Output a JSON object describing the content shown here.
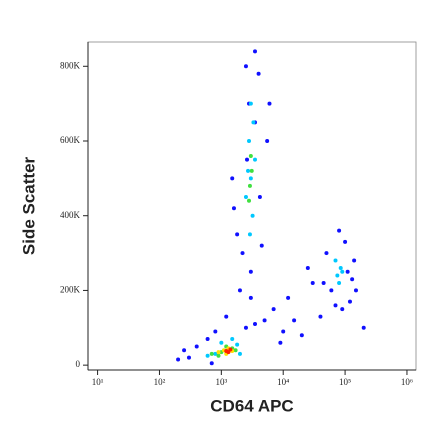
{
  "chart_data": {
    "type": "scatter",
    "x_label": "CD64 APC",
    "y_label": "Side Scatter",
    "xscale": "log",
    "xlim": [
      7,
      1400000
    ],
    "ylim": [
      -13000,
      865000
    ],
    "xticks": [
      {
        "value": 10,
        "label": "10¹"
      },
      {
        "value": 100,
        "label": "10²"
      },
      {
        "value": 1000,
        "label": "10³"
      },
      {
        "value": 10000,
        "label": "10⁴"
      },
      {
        "value": 100000,
        "label": "10⁵"
      },
      {
        "value": 1000000,
        "label": "10⁶"
      }
    ],
    "yticks": [
      0,
      {
        "value": 200000,
        "label": "200K"
      },
      {
        "value": 400000,
        "label": "400K"
      },
      {
        "value": 600000,
        "label": "600K"
      },
      {
        "value": 800000,
        "label": "800K"
      }
    ],
    "series": [
      {
        "color": "#1010ff",
        "x": [
          300,
          400,
          600,
          800,
          2500,
          3500,
          1200,
          2000,
          5000,
          7000,
          10000,
          15000,
          20000,
          40000,
          150000,
          200000,
          1800,
          2200,
          3000,
          4500,
          5500,
          6000,
          2500,
          3500,
          4000,
          1500,
          1600,
          2800,
          4200,
          50000,
          60000,
          70000,
          90000,
          120000,
          140000,
          45000,
          100000,
          80000,
          110000,
          130000,
          3000,
          3500,
          2600,
          200,
          250,
          700,
          9000,
          12000,
          25000,
          30000
        ],
        "y": [
          20000,
          50000,
          70000,
          90000,
          100000,
          110000,
          130000,
          200000,
          120000,
          150000,
          90000,
          120000,
          80000,
          130000,
          200000,
          100000,
          350000,
          300000,
          250000,
          320000,
          600000,
          700000,
          800000,
          840000,
          780000,
          500000,
          420000,
          700000,
          450000,
          300000,
          200000,
          160000,
          150000,
          170000,
          280000,
          220000,
          330000,
          360000,
          250000,
          230000,
          180000,
          650000,
          550000,
          15000,
          40000,
          5000,
          60000,
          180000,
          260000,
          220000
        ]
      },
      {
        "color": "#00c8ff",
        "x": [
          2500,
          3000,
          3500,
          2800,
          3200,
          2700,
          3300,
          3000,
          2900,
          75000,
          85000,
          80000,
          70000,
          90000,
          800,
          1000,
          1800,
          2000,
          600,
          1500
        ],
        "y": [
          450000,
          500000,
          550000,
          600000,
          400000,
          520000,
          650000,
          700000,
          350000,
          240000,
          260000,
          220000,
          280000,
          250000,
          30000,
          60000,
          55000,
          30000,
          25000,
          70000
        ]
      },
      {
        "color": "#40e040",
        "x": [
          2900,
          3100,
          3000,
          2800,
          1000,
          1200,
          1500,
          700,
          900,
          1700
        ],
        "y": [
          480000,
          520000,
          560000,
          440000,
          35000,
          50000,
          45000,
          30000,
          25000,
          40000
        ]
      },
      {
        "color": "#ffe000",
        "x": [
          1100,
          1300,
          900,
          1500,
          1200
        ],
        "y": [
          40000,
          45000,
          35000,
          38000,
          30000
        ]
      },
      {
        "color": "#ff2000",
        "x": [
          1200,
          1400,
          1300
        ],
        "y": [
          38000,
          42000,
          35000
        ]
      }
    ]
  }
}
